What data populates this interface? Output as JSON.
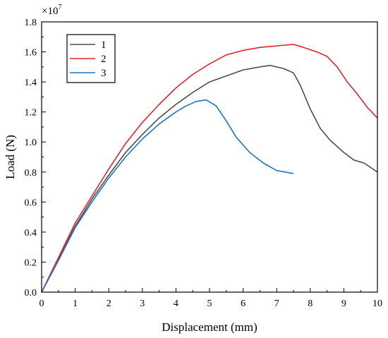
{
  "chart_data": {
    "type": "line",
    "xlabel": "Displacement (mm)",
    "ylabel": "Load (N)",
    "y_multiplier_base": "×10",
    "y_multiplier_exponent": "7",
    "xlim": [
      0,
      10
    ],
    "ylim": [
      0,
      1.8
    ],
    "x_ticks": [
      "0",
      "1",
      "2",
      "3",
      "4",
      "5",
      "6",
      "7",
      "8",
      "9",
      "10"
    ],
    "y_ticks": [
      "0.0",
      "0.2",
      "0.4",
      "0.6",
      "0.8",
      "1.0",
      "1.2",
      "1.4",
      "1.6",
      "1.8"
    ],
    "grid": false,
    "legend_position": "top-left",
    "series": [
      {
        "name": "1",
        "color": "#4d4d4d",
        "x": [
          0,
          0.5,
          1.0,
          1.5,
          2.0,
          2.5,
          3.0,
          3.5,
          4.0,
          4.5,
          5.0,
          5.5,
          6.0,
          6.5,
          6.8,
          7.2,
          7.5,
          7.7,
          8.0,
          8.3,
          8.6,
          9.0,
          9.3,
          9.6,
          10.0
        ],
        "y": [
          0,
          0.22,
          0.44,
          0.62,
          0.78,
          0.93,
          1.05,
          1.16,
          1.25,
          1.33,
          1.4,
          1.44,
          1.48,
          1.5,
          1.51,
          1.49,
          1.46,
          1.38,
          1.22,
          1.09,
          1.01,
          0.93,
          0.88,
          0.86,
          0.8
        ]
      },
      {
        "name": "2",
        "color": "#e8222a",
        "x": [
          0,
          0.5,
          1.0,
          1.5,
          2.0,
          2.5,
          3.0,
          3.5,
          4.0,
          4.5,
          5.0,
          5.5,
          6.0,
          6.5,
          7.0,
          7.5,
          7.8,
          8.2,
          8.5,
          8.8,
          9.1,
          9.4,
          9.7,
          10.0
        ],
        "y": [
          0,
          0.23,
          0.46,
          0.64,
          0.82,
          0.99,
          1.13,
          1.25,
          1.36,
          1.45,
          1.52,
          1.58,
          1.61,
          1.63,
          1.64,
          1.65,
          1.63,
          1.6,
          1.57,
          1.5,
          1.4,
          1.32,
          1.23,
          1.16
        ]
      },
      {
        "name": "3",
        "color": "#1a74c2",
        "x": [
          0,
          0.5,
          1.0,
          1.5,
          2.0,
          2.5,
          3.0,
          3.5,
          4.0,
          4.3,
          4.6,
          4.9,
          5.2,
          5.5,
          5.8,
          6.2,
          6.6,
          7.0,
          7.5
        ],
        "y": [
          0,
          0.21,
          0.43,
          0.6,
          0.76,
          0.9,
          1.02,
          1.12,
          1.2,
          1.24,
          1.27,
          1.28,
          1.24,
          1.14,
          1.03,
          0.93,
          0.86,
          0.81,
          0.79
        ]
      }
    ]
  }
}
